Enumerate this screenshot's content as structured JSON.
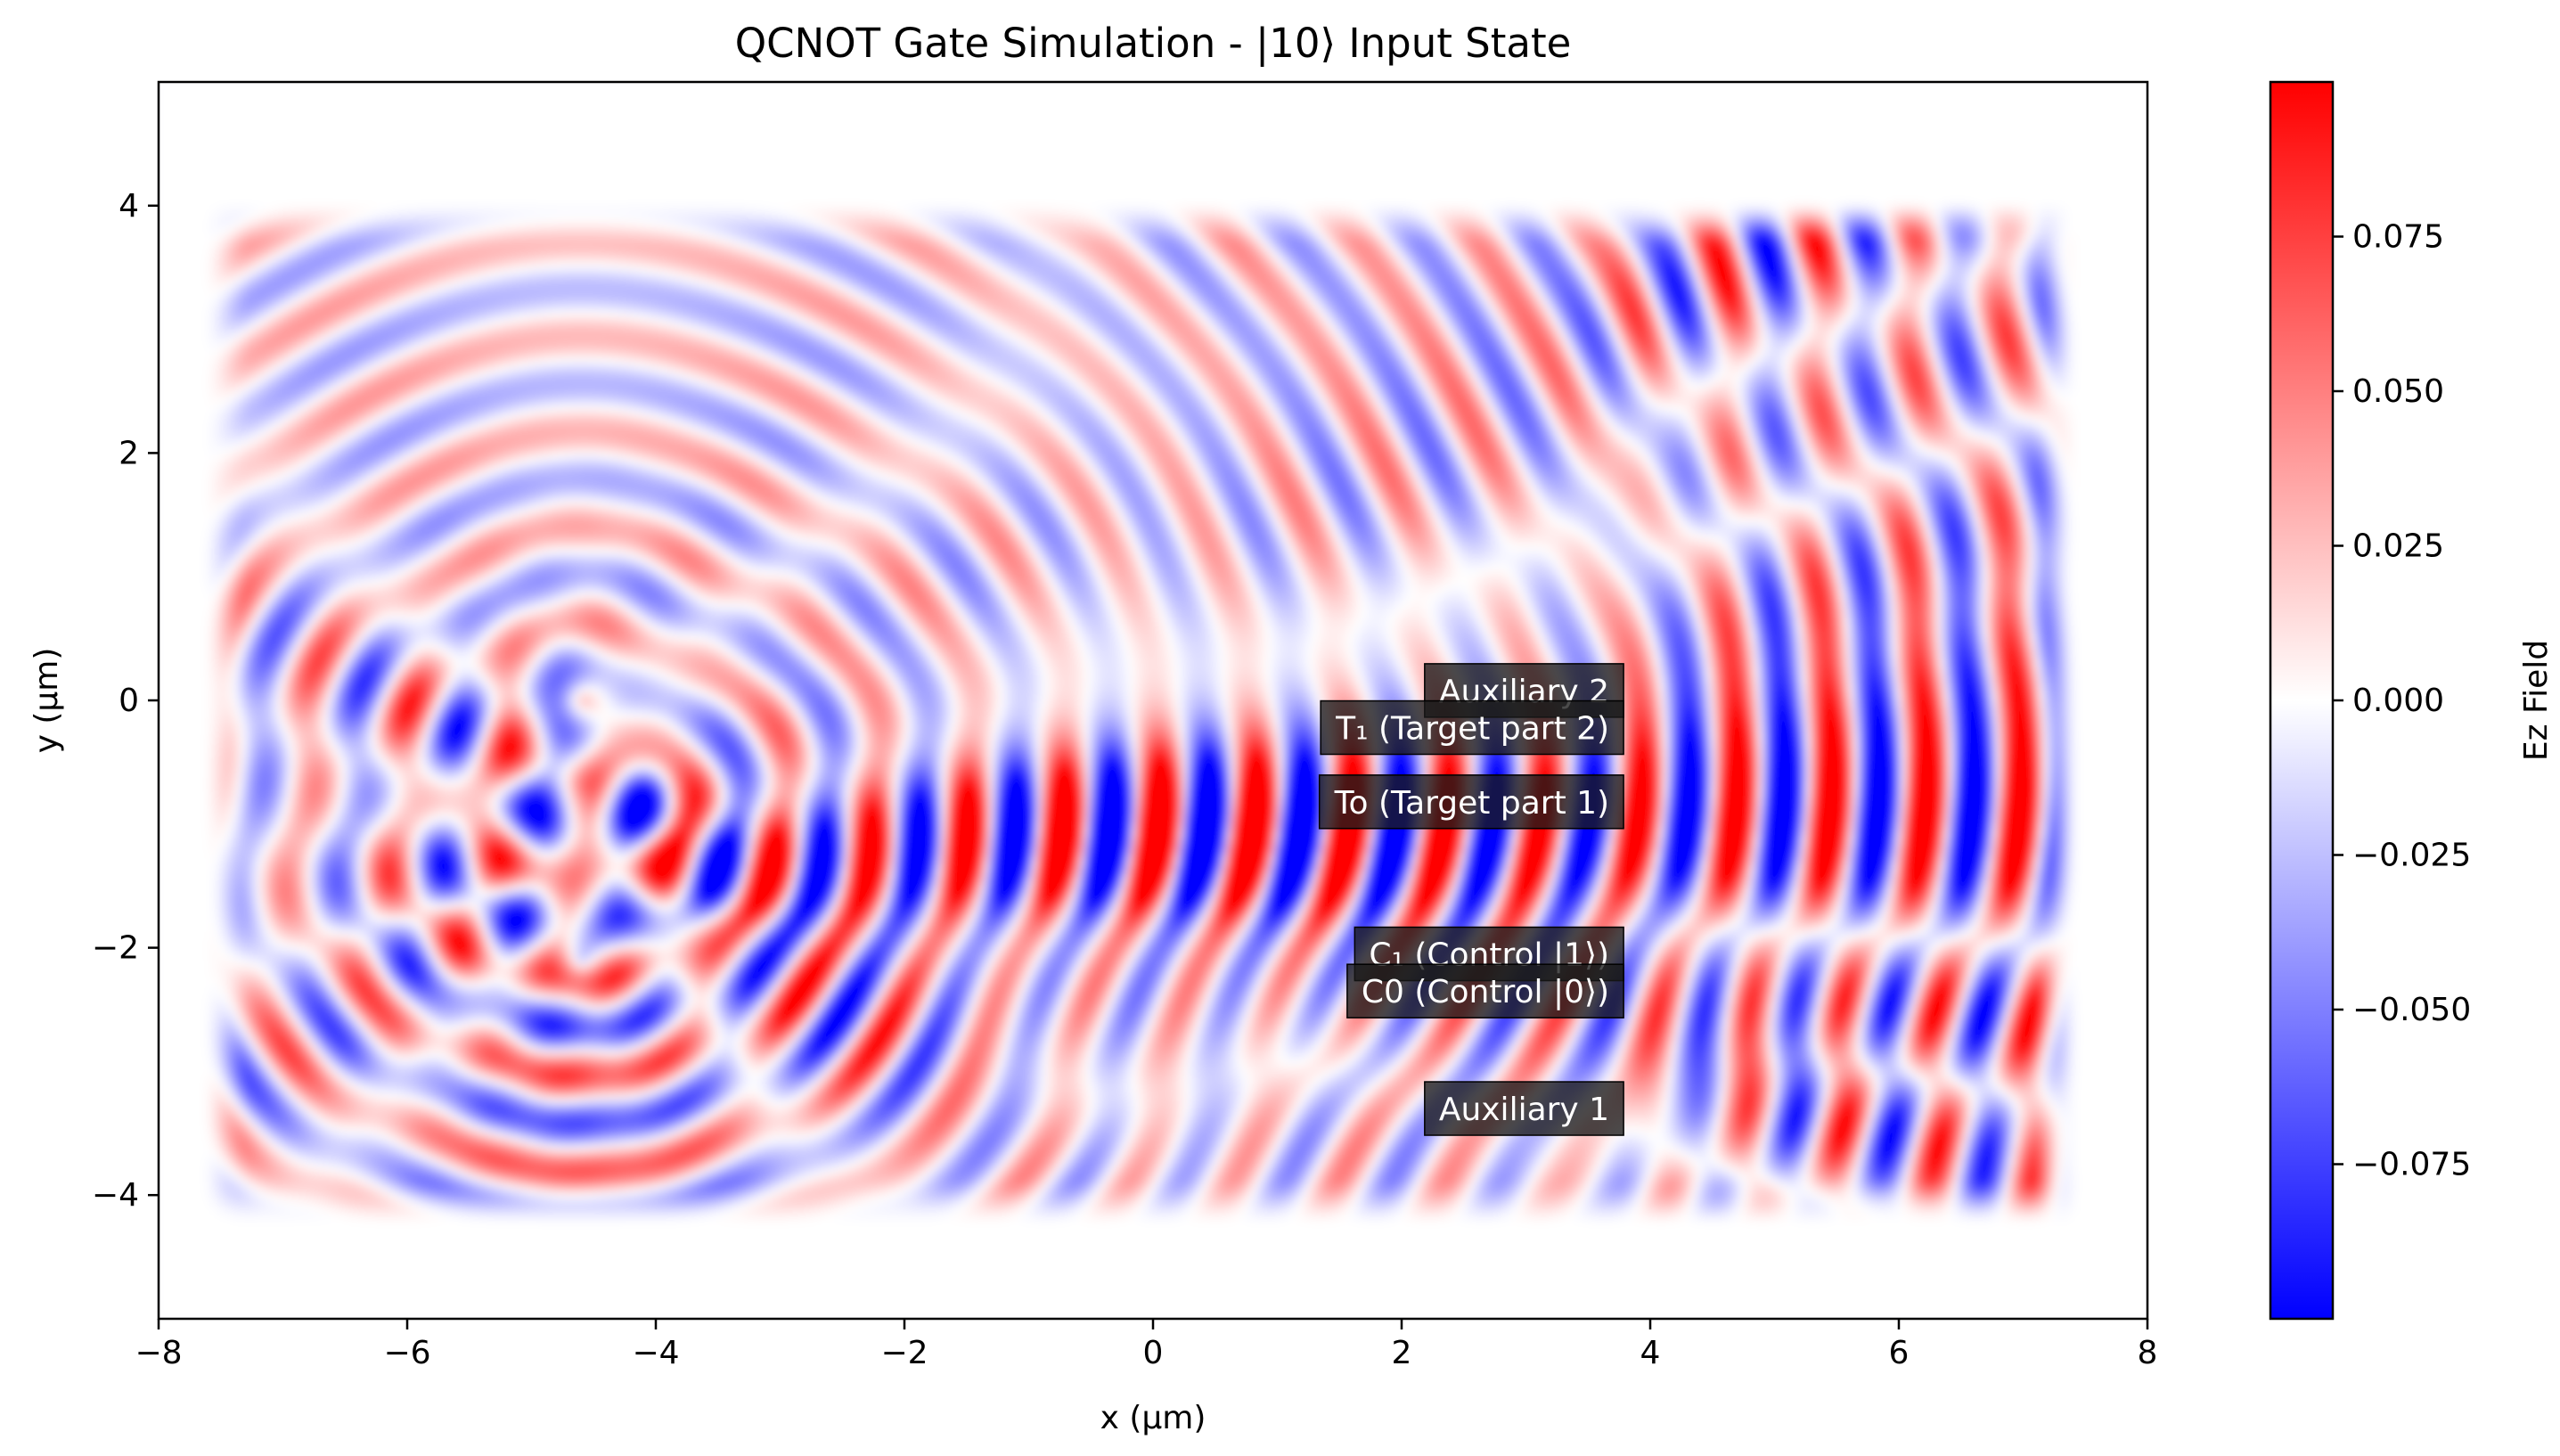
{
  "chart_data": {
    "type": "heatmap",
    "title": "QCNOT Gate Simulation - |10⟩ Input State",
    "xlabel": "x (µm)",
    "ylabel": "y (µm)",
    "xlim": [
      -8,
      8
    ],
    "ylim": [
      -5,
      5
    ],
    "x_ticks": [
      -8,
      -6,
      -4,
      -2,
      0,
      2,
      4,
      6,
      8
    ],
    "x_tick_labels": [
      "−8",
      "−6",
      "−4",
      "−2",
      "0",
      "2",
      "4",
      "6",
      "8"
    ],
    "y_ticks": [
      -4,
      -2,
      0,
      2,
      4
    ],
    "y_tick_labels": [
      "−4",
      "−2",
      "0",
      "2",
      "4"
    ],
    "colormap": "bwr",
    "colormap_colors": {
      "low": "#0000ff",
      "mid": "#ffffff",
      "high": "#ff0000"
    },
    "colorbar": {
      "label": "Ez Field",
      "range": [
        -0.1,
        0.1
      ],
      "ticks": [
        -0.075,
        -0.05,
        -0.025,
        0,
        0.025,
        0.05,
        0.075
      ],
      "tick_labels": [
        "−0.075",
        "−0.050",
        "−0.025",
        "0.000",
        "0.025",
        "0.050",
        "0.075"
      ]
    },
    "field_region": {
      "x": [
        -7.5,
        7.3
      ],
      "y": [
        -4.1,
        3.9
      ]
    },
    "field_features": {
      "source_x": -4.6,
      "source_y": [
        -2.1,
        -0.8,
        0
      ],
      "bright_region_center": [
        0.5,
        -1.2
      ]
    },
    "annotations": [
      {
        "text": "Auxiliary 2",
        "x_right": 3.8,
        "y": 0.08
      },
      {
        "text": "T₁ (Target part 2)",
        "x_right": 3.8,
        "y": -0.22
      },
      {
        "text": "To (Target part 1)",
        "x_right": 3.8,
        "y": -0.82
      },
      {
        "text": "C₁ (Control |1⟩)",
        "x_right": 3.8,
        "y": -2.05
      },
      {
        "text": "C0 (Control |0⟩)",
        "x_right": 3.8,
        "y": -2.35
      },
      {
        "text": "Auxiliary 1",
        "x_right": 3.8,
        "y": -3.3
      }
    ],
    "annotation_box_color": "#1a1a1a"
  }
}
